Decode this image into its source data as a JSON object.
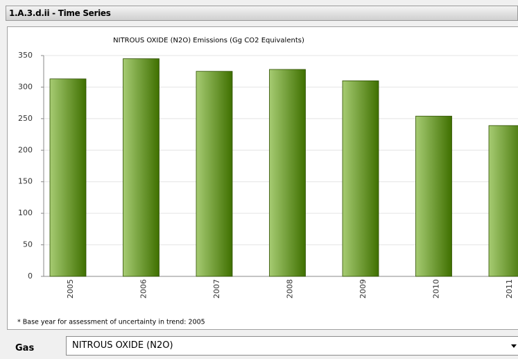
{
  "header": {
    "title": "1.A.3.d.ii - Time Series"
  },
  "chart_data": {
    "type": "bar",
    "title": "NITROUS OXIDE (N2O) Emissions (Gg CO2 Equivalents)",
    "categories": [
      "2005",
      "2006",
      "2007",
      "2008",
      "2009",
      "2010",
      "2011"
    ],
    "values": [
      313,
      345,
      325,
      328,
      310,
      254,
      239
    ],
    "ylim": [
      0,
      350
    ],
    "yticks": [
      0,
      50,
      100,
      150,
      200,
      250,
      300,
      350
    ],
    "grid": true,
    "footnote": "* Base year for assessment of uncertainty in trend: 2005"
  },
  "controls": {
    "gas_label": "Gas",
    "gas_value": "NITROUS OXIDE (N2O)"
  }
}
